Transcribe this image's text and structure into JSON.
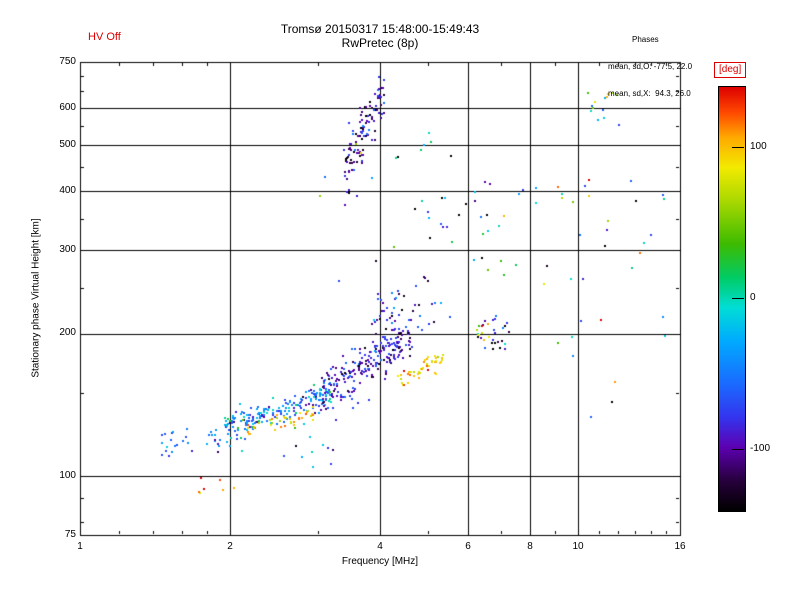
{
  "header": {
    "hv_status": "HV Off",
    "title": "Tromsø 20150317 15:48:00-15:49:43",
    "subtitle": "RwPretec (8p)",
    "phases": {
      "label": "Phases",
      "o_mode": "mean, sd,O: -77.5, 22.0",
      "x_mode": "mean, sd,X:  94.3, 26.0"
    }
  },
  "colors": {
    "accent_red": "#dd0000",
    "frame": "#000000",
    "background": "#ffffff"
  },
  "chart_data": {
    "type": "scatter",
    "title": "Tromsø 20150317 15:48:00-15:49:43  RwPretec (8p)",
    "xlabel": "Frequency [MHz]",
    "ylabel": "Stationary phase Virtual Height [km]",
    "x_scale": "log",
    "y_scale": "log",
    "xlim": [
      1,
      16
    ],
    "ylim": [
      75,
      750
    ],
    "x_ticks": [
      1,
      2,
      4,
      6,
      8,
      10,
      16
    ],
    "y_ticks": [
      750,
      600,
      500,
      400,
      300,
      200,
      100,
      75
    ],
    "x_tick_labels": [
      "1",
      "2",
      "4",
      "6",
      "8",
      "10",
      "16"
    ],
    "y_tick_labels": [
      "750",
      "600",
      "500",
      "400",
      "300",
      "200",
      "100",
      "75"
    ],
    "x_gridlines": [
      2,
      4,
      6,
      8,
      10
    ],
    "y_gridlines": [
      100,
      200,
      300,
      400,
      500,
      600
    ],
    "x_minor_ticks": [
      1.2,
      1.4,
      1.6,
      1.8,
      3,
      5,
      7,
      9,
      11,
      12,
      13,
      14,
      15
    ],
    "y_minor_ticks": [
      80,
      90,
      150,
      250,
      350,
      450,
      550,
      650,
      700
    ],
    "grid": true,
    "legend_position": "right-colorbar",
    "colorbar": {
      "label": "[deg]",
      "range": [
        -140,
        140
      ],
      "tick_values": [
        100,
        0,
        -100
      ],
      "tick_labels": [
        "100",
        "0",
        "-100"
      ],
      "stops": [
        [
          0.0,
          "#000000"
        ],
        [
          0.07,
          "#26003a"
        ],
        [
          0.15,
          "#5c00b0"
        ],
        [
          0.22,
          "#3434ee"
        ],
        [
          0.3,
          "#1a6aff"
        ],
        [
          0.4,
          "#00aaff"
        ],
        [
          0.48,
          "#00ddd5"
        ],
        [
          0.55,
          "#00cc66"
        ],
        [
          0.63,
          "#3dbb00"
        ],
        [
          0.73,
          "#a8d800"
        ],
        [
          0.81,
          "#f2ea00"
        ],
        [
          0.88,
          "#ffaa00"
        ],
        [
          0.94,
          "#ff4800"
        ],
        [
          1.0,
          "#dd0000"
        ]
      ]
    },
    "point_statistics": {
      "o_mode_phase_mean": -77.5,
      "o_mode_phase_sd": 22.0,
      "x_mode_phase_mean": 94.3,
      "x_mode_phase_sd": 26.0
    },
    "point_clusters": [
      {
        "name": "Es-trace-low-tail",
        "mode": "cloud",
        "n": 30,
        "f": [
          1.45,
          1.95
        ],
        "h": [
          110,
          127
        ],
        "phase": [
          -60,
          25
        ]
      },
      {
        "name": "Es-trace-main",
        "mode": "trace",
        "n": 200,
        "f": [
          1.95,
          3.2
        ],
        "h": [
          127,
          150
        ],
        "jitter": 5,
        "phase": [
          -45,
          30
        ]
      },
      {
        "name": "Es-X-mode-arc",
        "mode": "trace",
        "n": 40,
        "f": [
          2.1,
          2.95
        ],
        "h": [
          124,
          134
        ],
        "jitter": 3,
        "phase": [
          95,
          24
        ]
      },
      {
        "name": "F-trace-O-mode",
        "mode": "trace",
        "n": 230,
        "f": [
          3.05,
          4.65
        ],
        "h": [
          149,
          196
        ],
        "jitter": 9,
        "phase": [
          -85,
          22
        ]
      },
      {
        "name": "F-cusp",
        "mode": "cloud",
        "n": 35,
        "f": [
          3.85,
          4.5
        ],
        "h": [
          195,
          248
        ],
        "phase": [
          -90,
          26
        ]
      },
      {
        "name": "F-X-mode-yellow",
        "mode": "trace",
        "n": 45,
        "f": [
          4.35,
          5.35
        ],
        "h": [
          161,
          176
        ],
        "jitter": 4,
        "phase": [
          96,
          18
        ]
      },
      {
        "name": "spread-F-high-cluster",
        "mode": "trace",
        "n": 110,
        "f": [
          3.38,
          4.08
        ],
        "h": [
          435,
          645
        ],
        "jitter": 40,
        "phase": [
          -100,
          28
        ]
      },
      {
        "name": "F-top-navy",
        "mode": "cloud",
        "n": 12,
        "f": [
          4.6,
          5.6
        ],
        "h": [
          200,
          232
        ],
        "phase": [
          -105,
          30
        ]
      },
      {
        "name": "6-7MHz-group",
        "mode": "cloud",
        "n": 26,
        "f": [
          5.95,
          7.25
        ],
        "h": [
          183,
          222
        ],
        "phase": [
          -118,
          45
        ]
      },
      {
        "name": "6MHz-yellow",
        "mode": "cloud",
        "n": 8,
        "f": [
          6.0,
          6.7
        ],
        "h": [
          193,
          220
        ],
        "phase": [
          95,
          25
        ]
      },
      {
        "name": "11MHz-high-column",
        "mode": "cloud",
        "n": 14,
        "f": [
          10.4,
          12.2
        ],
        "h": [
          550,
          650
        ],
        "phase": [
          20,
          80
        ]
      },
      {
        "name": "right-side-scatter",
        "mode": "cloud",
        "n": 35,
        "f": [
          8.2,
          15.0
        ],
        "h": [
          115,
          430
        ],
        "phase": [
          0,
          95
        ]
      },
      {
        "name": "mid-scatter",
        "mode": "cloud",
        "n": 30,
        "f": [
          4.6,
          7.8
        ],
        "h": [
          235,
          420
        ],
        "phase": [
          -50,
          75
        ]
      },
      {
        "name": "upper-sparse",
        "mode": "cloud",
        "n": 22,
        "f": [
          3.0,
          6.8
        ],
        "h": [
          240,
          530
        ],
        "phase": [
          -60,
          75
        ]
      },
      {
        "name": "below-Es-sparse",
        "mode": "cloud",
        "n": 10,
        "f": [
          2.55,
          3.35
        ],
        "h": [
          103,
          121
        ],
        "phase": [
          -60,
          35
        ]
      },
      {
        "name": "bottom-orange",
        "mode": "cloud",
        "n": 7,
        "f": [
          1.72,
          2.05
        ],
        "h": [
          92,
          100
        ],
        "phase": [
          102,
          35
        ]
      }
    ]
  }
}
